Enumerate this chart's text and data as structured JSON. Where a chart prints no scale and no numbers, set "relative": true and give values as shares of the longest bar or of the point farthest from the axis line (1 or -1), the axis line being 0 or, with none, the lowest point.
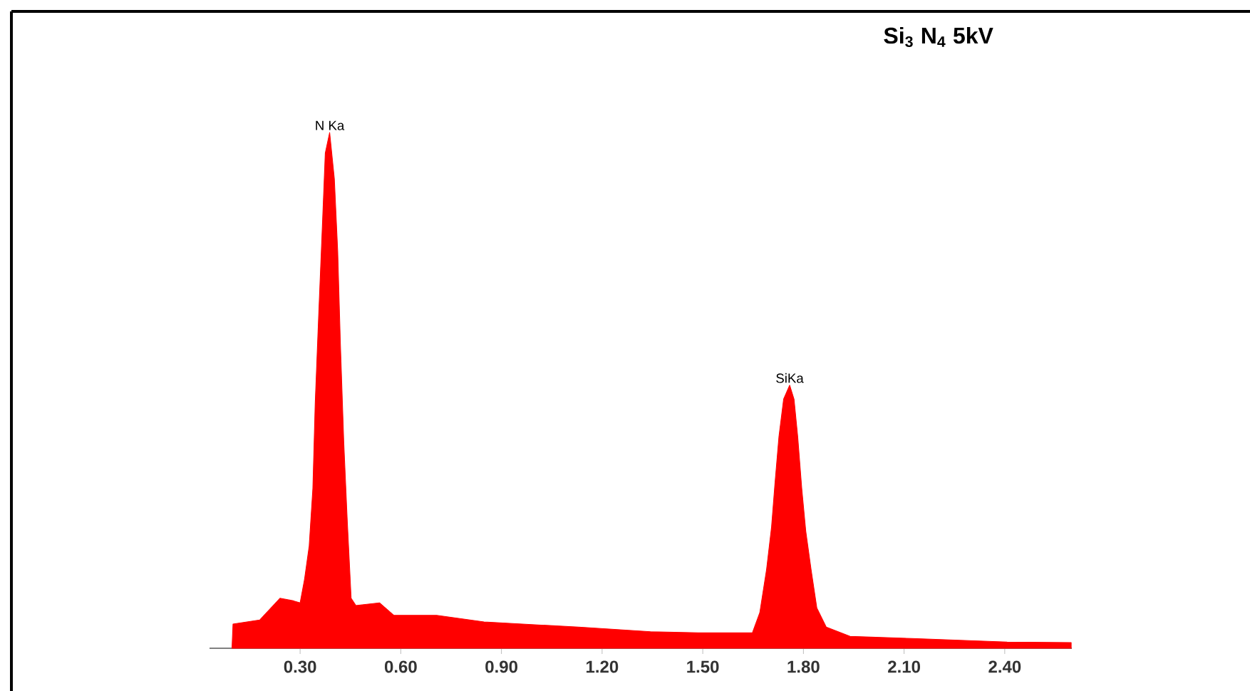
{
  "chart_data": {
    "type": "area",
    "title": "Si$_{3}$ N$_{4}$ 5kV",
    "relative": true,
    "color": "#ff0000",
    "x": [
      0.097,
      0.1,
      0.18,
      0.24,
      0.28,
      0.3,
      0.313,
      0.327,
      0.338,
      0.345,
      0.355,
      0.367,
      0.375,
      0.388,
      0.402,
      0.412,
      0.42,
      0.43,
      0.44,
      0.452,
      0.466,
      0.537,
      0.579,
      0.707,
      0.848,
      1.13,
      1.344,
      1.486,
      1.648,
      1.67,
      1.69,
      1.705,
      1.715,
      1.727,
      1.741,
      1.759,
      1.772,
      1.783,
      1.795,
      1.807,
      1.823,
      1.84,
      1.868,
      1.939,
      2.123,
      2.407,
      2.598
    ],
    "values": [
      0.0,
      0.047,
      0.055,
      0.097,
      0.092,
      0.088,
      0.133,
      0.198,
      0.31,
      0.475,
      0.64,
      0.83,
      0.96,
      1.0,
      0.91,
      0.77,
      0.59,
      0.4,
      0.254,
      0.097,
      0.083,
      0.088,
      0.064,
      0.064,
      0.051,
      0.041,
      0.032,
      0.03,
      0.03,
      0.069,
      0.152,
      0.235,
      0.318,
      0.41,
      0.483,
      0.51,
      0.483,
      0.41,
      0.31,
      0.227,
      0.152,
      0.078,
      0.041,
      0.023,
      0.019,
      0.012,
      0.011
    ],
    "xlim": [
      0.03,
      2.6
    ],
    "xticks": [
      {
        "value": 0.3,
        "label": "0.30"
      },
      {
        "value": 0.6,
        "label": "0.60"
      },
      {
        "value": 0.9,
        "label": "0.90"
      },
      {
        "value": 1.2,
        "label": "1.20"
      },
      {
        "value": 1.5,
        "label": "1.50"
      },
      {
        "value": 1.8,
        "label": "1.80"
      },
      {
        "value": 2.1,
        "label": "2.10"
      },
      {
        "value": 2.4,
        "label": "2.40"
      }
    ],
    "annotations": [
      {
        "text": "N Ka",
        "x": 0.388,
        "y": 1.0
      },
      {
        "text": "SiKa",
        "x": 1.759,
        "y": 0.51
      }
    ]
  }
}
